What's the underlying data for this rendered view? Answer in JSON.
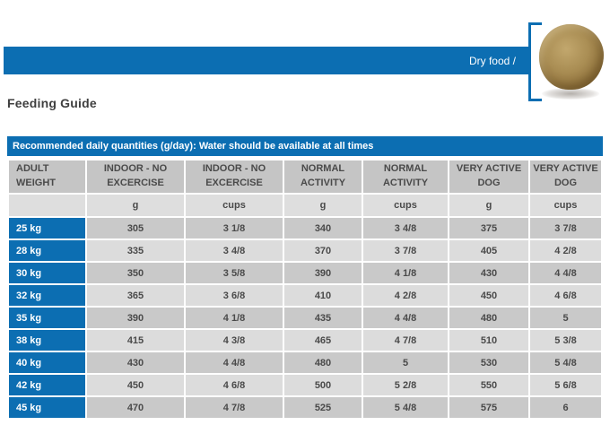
{
  "banner": {
    "label": "Dry food /"
  },
  "heading": "Feeding Guide",
  "colors": {
    "brand_blue": "#0c6eb2",
    "header_gray": "#c5c5c5",
    "unit_row_gray": "#dedede",
    "row_dark_gray": "#c9c9c9",
    "row_light_gray": "#dcdcdc",
    "kibble_brown": "#ab8f55"
  },
  "table": {
    "title": "Recommended daily quantities (g/day): Water should be available at all times",
    "weight_header": "ADULT WEIGHT",
    "column_groups": [
      "INDOOR - NO EXCERCISE",
      "INDOOR - NO EXCERCISE",
      "NORMAL ACTIVITY",
      "NORMAL ACTIVITY",
      "VERY ACTIVE DOG",
      "VERY ACTIVE DOG"
    ],
    "units": [
      "g",
      "cups",
      "g",
      "cups",
      "g",
      "cups"
    ],
    "rows": [
      {
        "weight": "25 kg",
        "values": [
          "305",
          "3 1/8",
          "340",
          "3 4/8",
          "375",
          "3 7/8"
        ]
      },
      {
        "weight": "28 kg",
        "values": [
          "335",
          "3 4/8",
          "370",
          "3 7/8",
          "405",
          "4 2/8"
        ]
      },
      {
        "weight": "30 kg",
        "values": [
          "350",
          "3 5/8",
          "390",
          "4 1/8",
          "430",
          "4 4/8"
        ]
      },
      {
        "weight": "32 kg",
        "values": [
          "365",
          "3 6/8",
          "410",
          "4 2/8",
          "450",
          "4 6/8"
        ]
      },
      {
        "weight": "35 kg",
        "values": [
          "390",
          "4 1/8",
          "435",
          "4 4/8",
          "480",
          "5"
        ]
      },
      {
        "weight": "38 kg",
        "values": [
          "415",
          "4 3/8",
          "465",
          "4 7/8",
          "510",
          "5 3/8"
        ]
      },
      {
        "weight": "40 kg",
        "values": [
          "430",
          "4 4/8",
          "480",
          "5",
          "530",
          "5 4/8"
        ]
      },
      {
        "weight": "42 kg",
        "values": [
          "450",
          "4 6/8",
          "500",
          "5 2/8",
          "550",
          "5 6/8"
        ]
      },
      {
        "weight": "45 kg",
        "values": [
          "470",
          "4 7/8",
          "525",
          "5 4/8",
          "575",
          "6"
        ]
      }
    ]
  }
}
